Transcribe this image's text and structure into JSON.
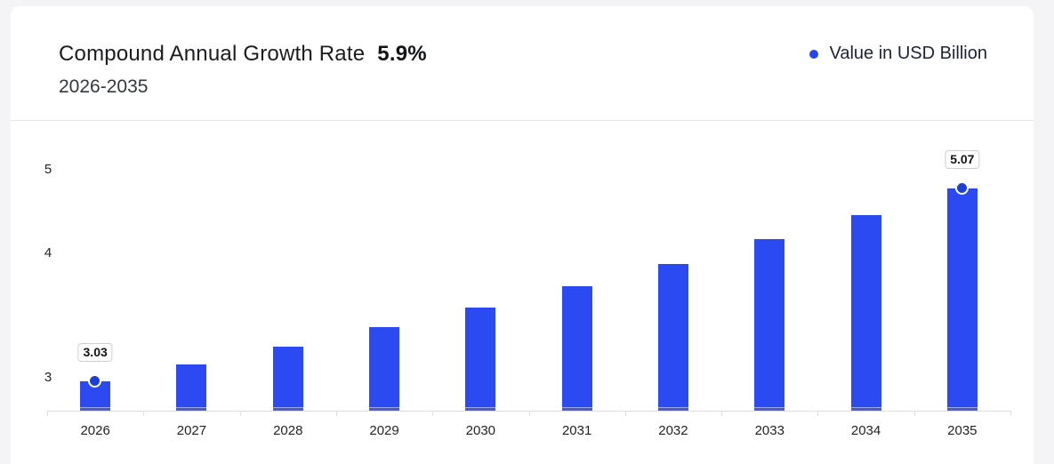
{
  "header": {
    "title": "Compound Annual Growth Rate",
    "cagr_value": "5.9%",
    "period": "2026-2035",
    "legend": {
      "label": "Value in USD Billion",
      "dot_color": "#2547f0"
    }
  },
  "chart_data": {
    "type": "bar",
    "title": "Compound Annual Growth Rate 5.9%",
    "subtitle": "2026-2035",
    "categories": [
      "2026",
      "2027",
      "2028",
      "2029",
      "2030",
      "2031",
      "2032",
      "2033",
      "2034",
      "2035"
    ],
    "series": [
      {
        "name": "Value in USD Billion",
        "values": [
          3.03,
          3.21,
          3.4,
          3.6,
          3.81,
          4.04,
          4.27,
          4.53,
          4.79,
          5.07
        ]
      }
    ],
    "labeled_points": [
      {
        "category": "2026",
        "label": "3.03"
      },
      {
        "category": "2035",
        "label": "5.07"
      }
    ],
    "yticks": [
      "5",
      "4",
      "3"
    ],
    "ylabel": "",
    "xlabel": "",
    "ylim": [
      2.72,
      5.35
    ],
    "grid": false,
    "legend_position": "top-right",
    "bar_color": "#2b4af2",
    "bar_base_color": "#4c5cc4",
    "dot_color": "#1e3fd6",
    "axis_color": "#dfdfe2"
  }
}
